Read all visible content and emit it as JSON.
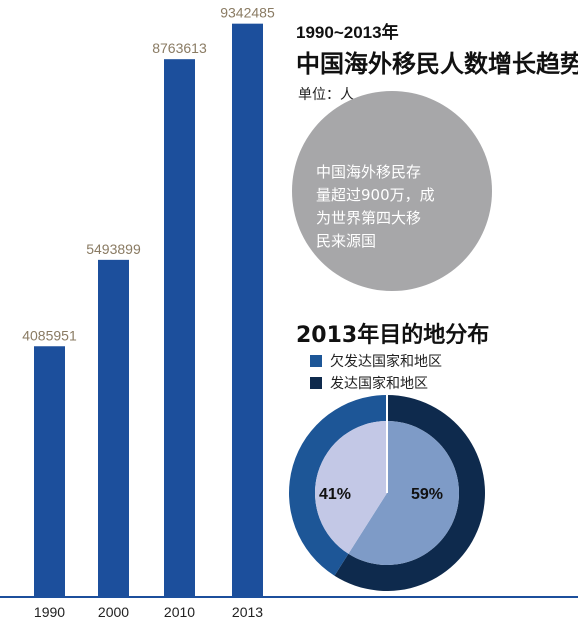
{
  "header": {
    "range_title": "1990~2013年",
    "main_title": "中国海外移民人数增长趋势",
    "unit": "单位：人"
  },
  "callout": {
    "lines": [
      "中国海外移民存",
      "量超过900万，成",
      "为世界第四大移",
      "民来源国"
    ]
  },
  "distribution": {
    "title": "2013年目的地分布"
  },
  "colors": {
    "bar": "#1c4f9c",
    "axis": "#1c4f9c",
    "callout_circle": "#a7a7a9",
    "developing": "#1d5697",
    "developed": "#0e2a4d",
    "inner_light": "#c3c8e6"
  },
  "chart_data": [
    {
      "type": "bar",
      "title": "中国海外移民人数增长趋势",
      "categories": [
        "1990",
        "2000",
        "2010",
        "2013"
      ],
      "values": [
        4085951,
        5493899,
        8763613,
        9342485
      ],
      "value_labels": [
        "4085951",
        "5493899",
        "8763613",
        "9342485"
      ],
      "ylim": [
        0,
        9500000
      ],
      "grid": false,
      "xlabel": "",
      "ylabel": ""
    },
    {
      "type": "pie",
      "title": "2013年目的地分布",
      "legend_position": "top",
      "series": [
        {
          "name": "欠发达国家和地区",
          "value": 41,
          "label": "41%",
          "color": "#1d5697"
        },
        {
          "name": "发达国家和地区",
          "value": 59,
          "label": "59%",
          "color": "#0e2a4d"
        }
      ]
    }
  ]
}
